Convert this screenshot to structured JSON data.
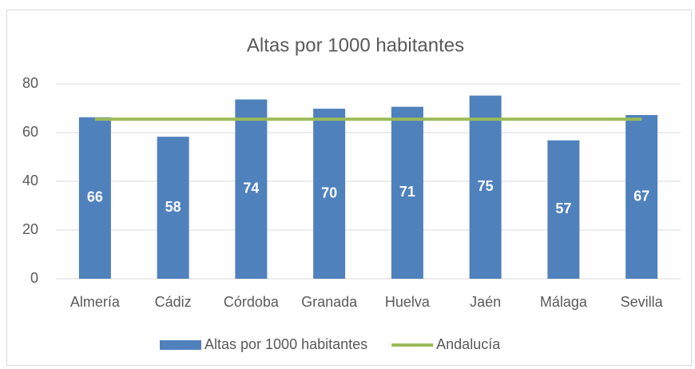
{
  "chart_data": {
    "type": "bar",
    "title": "Altas por 1000 habitantes",
    "categories": [
      "Almería",
      "Cádiz",
      "Córdoba",
      "Granada",
      "Huelva",
      "Jaén",
      "Málaga",
      "Sevilla"
    ],
    "series": [
      {
        "name": "Altas por 1000 habitantes",
        "type": "bar",
        "color": "#4f81bd",
        "values": [
          66.3,
          58.3,
          73.6,
          69.8,
          70.6,
          75.2,
          56.8,
          67.2
        ],
        "value_labels": [
          "66",
          "58",
          "74",
          "70",
          "71",
          "75",
          "57",
          "67"
        ]
      },
      {
        "name": "Andalucía",
        "type": "line",
        "color": "#9bbb59",
        "values": [
          65.5,
          65.5,
          65.5,
          65.5,
          65.5,
          65.5,
          65.5,
          65.5
        ]
      }
    ],
    "ylim": [
      0,
      80
    ],
    "yticks": [
      0,
      20,
      40,
      60,
      80
    ],
    "grid": true,
    "legend": "bottom"
  }
}
